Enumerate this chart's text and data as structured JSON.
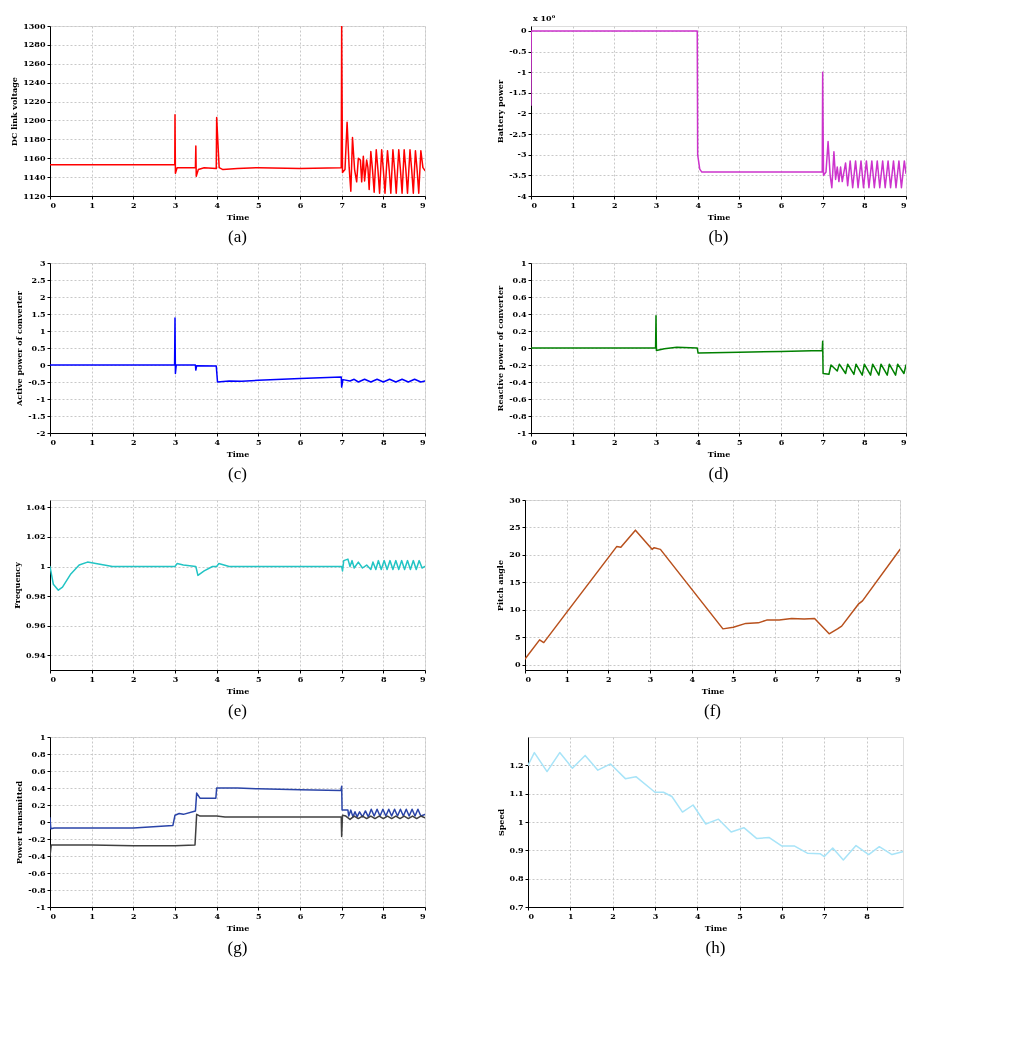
{
  "chart_data": [
    {
      "type": "line",
      "xlabel": "Time",
      "ylabel": "DC link voltage",
      "xlim": [
        0,
        9
      ],
      "xticks": [
        0,
        1,
        2,
        3,
        4,
        5,
        6,
        7,
        8,
        9
      ],
      "ylim": [
        1120,
        1300
      ],
      "yticks": [
        1120,
        1140,
        1160,
        1180,
        1200,
        1220,
        1240,
        1260,
        1280,
        1300
      ],
      "grid": true,
      "annotations": [
        "(a)"
      ],
      "series": [
        {
          "color": "#ff0000",
          "x": [
            0,
            2.995,
            3.0,
            3.01,
            3.05,
            3.49,
            3.5,
            3.51,
            3.56,
            3.7,
            3.99,
            4.0,
            4.06,
            4.15,
            4.5,
            5,
            6,
            6.99,
            7.0,
            7.02,
            7.08,
            7.13,
            7.18,
            7.22,
            7.26,
            7.31,
            7.36,
            7.4,
            7.45,
            7.48,
            7.52,
            7.55,
            7.6,
            7.63,
            7.66,
            7.7,
            7.74,
            7.78,
            7.83,
            7.87,
            7.91,
            7.96,
            8.0,
            8.04,
            8.1,
            8.14,
            8.18,
            8.23,
            8.27,
            8.31,
            8.37,
            8.41,
            8.45,
            8.5,
            8.54,
            8.58,
            8.64,
            8.68,
            8.72,
            8.77,
            8.81,
            8.85,
            8.9,
            8.95,
            9
          ],
          "values": [
            1153,
            1153,
            1206,
            1144,
            1150,
            1150,
            1173,
            1141,
            1148,
            1150,
            1149,
            1203,
            1150,
            1148,
            1149,
            1150,
            1149,
            1150,
            1300,
            1145,
            1148,
            1198,
            1150,
            1125,
            1182,
            1148,
            1135,
            1160,
            1158,
            1135,
            1162,
            1136,
            1158,
            1150,
            1127,
            1167,
            1148,
            1124,
            1169,
            1148,
            1123,
            1169,
            1148,
            1123,
            1168,
            1148,
            1123,
            1169,
            1148,
            1123,
            1169,
            1148,
            1123,
            1169,
            1148,
            1123,
            1169,
            1148,
            1123,
            1168,
            1148,
            1123,
            1168,
            1150,
            1147
          ]
        }
      ]
    },
    {
      "type": "line",
      "xlabel": "Time",
      "ylabel": "Battery power",
      "xlim": [
        0,
        9
      ],
      "xticks": [
        0,
        1,
        2,
        3,
        4,
        5,
        6,
        7,
        8,
        9
      ],
      "ylim": [
        -4,
        0.12
      ],
      "yticks": [
        -4,
        -3.5,
        -3,
        -2.5,
        -2,
        -1.5,
        -1,
        -0.5,
        0
      ],
      "grid": true,
      "annotations": [
        "x 10⁶",
        "(b)"
      ],
      "series": [
        {
          "color": "#cc33cc",
          "x": [
            0,
            0.005,
            3.99,
            4.0,
            4.05,
            4.1,
            5,
            6.99,
            7.0,
            7.02,
            7.08,
            7.13,
            7.18,
            7.22,
            7.27,
            7.31,
            7.35,
            7.39,
            7.43,
            7.47,
            7.55,
            7.6,
            7.66,
            7.72,
            7.79,
            7.85,
            7.92,
            7.98,
            8.05,
            8.11,
            8.18,
            8.24,
            8.31,
            8.37,
            8.44,
            8.5,
            8.57,
            8.63,
            8.7,
            8.76,
            8.83,
            8.89,
            8.96,
            9
          ],
          "values": [
            -1.8,
            0,
            0,
            -3.0,
            -3.35,
            -3.42,
            -3.42,
            -3.42,
            -1.0,
            -3.5,
            -3.42,
            -2.68,
            -3.5,
            -3.8,
            -2.93,
            -3.6,
            -3.3,
            -3.65,
            -3.3,
            -3.65,
            -3.2,
            -3.75,
            -3.15,
            -3.8,
            -3.15,
            -3.8,
            -3.15,
            -3.8,
            -3.15,
            -3.8,
            -3.15,
            -3.8,
            -3.15,
            -3.8,
            -3.15,
            -3.8,
            -3.15,
            -3.8,
            -3.15,
            -3.8,
            -3.15,
            -3.8,
            -3.15,
            -3.45
          ]
        }
      ]
    },
    {
      "type": "line",
      "xlabel": "Time",
      "ylabel": "Active power of converter",
      "xlim": [
        0,
        9
      ],
      "xticks": [
        0,
        1,
        2,
        3,
        4,
        5,
        6,
        7,
        8,
        9
      ],
      "ylim": [
        -2,
        3
      ],
      "yticks": [
        -2,
        -1.5,
        -1,
        -0.5,
        0,
        0.5,
        1,
        1.5,
        2,
        2.5,
        3
      ],
      "grid": true,
      "annotations": [
        "(c)"
      ],
      "series": [
        {
          "color": "#0000ff",
          "x": [
            0,
            2.99,
            3.0,
            3.01,
            3.03,
            3.49,
            3.5,
            3.52,
            3.99,
            4.02,
            4.3,
            4.6,
            5,
            6,
            6.99,
            7.0,
            7.03,
            7.2,
            7.3,
            7.4,
            7.55,
            7.7,
            7.85,
            8.0,
            8.15,
            8.3,
            8.45,
            8.6,
            8.75,
            8.9,
            9
          ],
          "values": [
            0,
            0,
            1.38,
            -0.25,
            0,
            0,
            -0.15,
            -0.02,
            -0.03,
            -0.5,
            -0.47,
            -0.48,
            -0.45,
            -0.4,
            -0.35,
            -0.65,
            -0.43,
            -0.47,
            -0.42,
            -0.5,
            -0.42,
            -0.5,
            -0.42,
            -0.5,
            -0.42,
            -0.5,
            -0.42,
            -0.5,
            -0.42,
            -0.5,
            -0.47
          ]
        }
      ]
    },
    {
      "type": "line",
      "xlabel": "Time",
      "ylabel": "Reactive power of converter",
      "xlim": [
        0,
        9
      ],
      "xticks": [
        0,
        1,
        2,
        3,
        4,
        5,
        6,
        7,
        8,
        9
      ],
      "ylim": [
        -1,
        1
      ],
      "yticks": [
        -1,
        -0.8,
        -0.6,
        -0.4,
        -0.2,
        0,
        0.2,
        0.4,
        0.6,
        0.8,
        1
      ],
      "grid": true,
      "annotations": [
        "(d)"
      ],
      "series": [
        {
          "color": "#008000",
          "x": [
            0,
            2.99,
            3.0,
            3.01,
            3.2,
            3.5,
            3.99,
            4.01,
            5,
            6,
            6.99,
            7.0,
            7.01,
            7.15,
            7.2,
            7.35,
            7.4,
            7.55,
            7.6,
            7.75,
            7.8,
            7.95,
            8.0,
            8.15,
            8.2,
            8.35,
            8.4,
            8.55,
            8.6,
            8.75,
            8.8,
            8.95,
            9
          ],
          "values": [
            0,
            0,
            0.38,
            -0.03,
            -0.01,
            0.01,
            0,
            -0.06,
            -0.05,
            -0.04,
            -0.03,
            0.08,
            -0.3,
            -0.31,
            -0.2,
            -0.27,
            -0.19,
            -0.3,
            -0.19,
            -0.31,
            -0.19,
            -0.32,
            -0.19,
            -0.32,
            -0.19,
            -0.32,
            -0.19,
            -0.32,
            -0.19,
            -0.32,
            -0.19,
            -0.3,
            -0.2
          ]
        }
      ]
    },
    {
      "type": "line",
      "xlabel": "Time",
      "ylabel": "Frequency",
      "xlim": [
        0,
        9
      ],
      "xticks": [
        0,
        1,
        2,
        3,
        4,
        5,
        6,
        7,
        8,
        9
      ],
      "ylim": [
        0.93,
        1.045
      ],
      "yticks": [
        0.94,
        0.96,
        0.98,
        1,
        1.02,
        1.04
      ],
      "grid": true,
      "annotations": [
        "(e)"
      ],
      "series": [
        {
          "color": "#22c4c4",
          "x": [
            0,
            0.08,
            0.2,
            0.3,
            0.5,
            0.7,
            0.9,
            1.1,
            1.5,
            3.0,
            3.05,
            3.2,
            3.5,
            3.55,
            3.7,
            3.9,
            4.0,
            4.05,
            4.3,
            7.0,
            7.02,
            7.05,
            7.15,
            7.2,
            7.25,
            7.3,
            7.4,
            7.5,
            7.6,
            7.7,
            7.75,
            7.82,
            7.88,
            7.95,
            8.02,
            8.09,
            8.16,
            8.23,
            8.3,
            8.37,
            8.44,
            8.51,
            8.58,
            8.65,
            8.72,
            8.79,
            8.86,
            8.93,
            9
          ],
          "values": [
            1.0,
            0.988,
            0.984,
            0.986,
            0.995,
            1.001,
            1.003,
            1.002,
            1.0,
            1.0,
            1.002,
            1.001,
            1.0,
            0.994,
            0.997,
            1.0,
            1.0,
            1.002,
            1.0,
            1.0,
            0.997,
            1.004,
            1.005,
            1.0,
            1.004,
            0.999,
            1.003,
            0.999,
            1.001,
            0.998,
            1.003,
            0.998,
            1.004,
            0.998,
            1.004,
            0.998,
            1.004,
            0.998,
            1.004,
            0.998,
            1.004,
            0.998,
            1.004,
            0.998,
            1.004,
            0.998,
            1.004,
            0.999,
            1.0
          ]
        }
      ]
    },
    {
      "type": "line",
      "xlabel": "Time",
      "ylabel": "Pitch angle",
      "xlim": [
        0,
        9
      ],
      "xticks": [
        0,
        1,
        2,
        3,
        4,
        5,
        6,
        7,
        8,
        9
      ],
      "ylim": [
        -1,
        30
      ],
      "yticks": [
        0,
        5,
        10,
        15,
        20,
        25,
        30
      ],
      "grid": true,
      "annotations": [
        "(f)"
      ],
      "series": [
        {
          "color": "#b8501c",
          "x": [
            0,
            0.35,
            0.45,
            1,
            2.2,
            2.3,
            2.65,
            3.05,
            3.1,
            3.25,
            4.75,
            5,
            5.3,
            5.6,
            5.8,
            6.1,
            6.4,
            6.7,
            6.95,
            7.3,
            7.5,
            7.6,
            8,
            8.1,
            9
          ],
          "values": [
            1,
            4.5,
            4,
            9.5,
            21.5,
            21.4,
            24.5,
            21,
            21.3,
            21,
            6.5,
            6.8,
            7.5,
            7.6,
            8.1,
            8.1,
            8.4,
            8.3,
            8.4,
            5.6,
            6.5,
            7,
            11,
            11.6,
            21
          ]
        }
      ]
    },
    {
      "type": "line",
      "xlabel": "Time",
      "ylabel": "Power transmitted",
      "xlim": [
        0,
        9
      ],
      "xticks": [
        0,
        1,
        2,
        3,
        4,
        5,
        6,
        7,
        8,
        9
      ],
      "ylim": [
        -1,
        1
      ],
      "yticks": [
        -1,
        -0.8,
        -0.6,
        -0.4,
        -0.2,
        0,
        0.2,
        0.4,
        0.6,
        0.8,
        1
      ],
      "grid": true,
      "annotations": [
        "(g)"
      ],
      "series": [
        {
          "color": "#2a44a8",
          "x": [
            0,
            0.02,
            0.1,
            1,
            2,
            2.95,
            3.0,
            3.1,
            3.2,
            3.49,
            3.52,
            3.6,
            3.98,
            4.0,
            4.5,
            5,
            6,
            6.98,
            7.0,
            7.01,
            7.15,
            7.17,
            7.22,
            7.27,
            7.32,
            7.37,
            7.43,
            7.5,
            7.57,
            7.64,
            7.71,
            7.78,
            7.85,
            7.92,
            7.99,
            8.06,
            8.13,
            8.2,
            8.27,
            8.34,
            8.41,
            8.48,
            8.55,
            8.62,
            8.69,
            8.76,
            8.83,
            8.9,
            9
          ],
          "values": [
            0.05,
            -0.08,
            -0.07,
            -0.07,
            -0.07,
            -0.04,
            0.08,
            0.1,
            0.09,
            0.13,
            0.34,
            0.28,
            0.28,
            0.4,
            0.4,
            0.39,
            0.38,
            0.37,
            0.42,
            0.14,
            0.14,
            0.07,
            0.14,
            0.06,
            0.12,
            0.06,
            0.12,
            0.06,
            0.13,
            0.06,
            0.15,
            0.07,
            0.15,
            0.07,
            0.15,
            0.07,
            0.15,
            0.07,
            0.15,
            0.07,
            0.15,
            0.07,
            0.15,
            0.07,
            0.15,
            0.07,
            0.15,
            0.07,
            0.09
          ]
        },
        {
          "color": "#404040",
          "x": [
            0,
            0.03,
            1,
            2,
            3,
            3.48,
            3.52,
            3.6,
            4,
            4.2,
            6.99,
            7.0,
            7.02,
            7.1,
            7.2,
            7.3,
            7.4,
            7.5,
            7.6,
            7.7,
            7.8,
            7.9,
            8.0,
            8.1,
            8.2,
            8.3,
            8.4,
            8.5,
            8.6,
            8.7,
            8.8,
            8.9,
            9
          ],
          "values": [
            -0.4,
            -0.27,
            -0.27,
            -0.28,
            -0.28,
            -0.27,
            0.09,
            0.07,
            0.07,
            0.06,
            0.06,
            -0.17,
            0.08,
            0.07,
            0.03,
            0.07,
            0.04,
            0.07,
            0.04,
            0.07,
            0.04,
            0.07,
            0.04,
            0.07,
            0.04,
            0.07,
            0.04,
            0.07,
            0.04,
            0.07,
            0.04,
            0.07,
            0.05
          ]
        }
      ]
    },
    {
      "type": "line",
      "xlabel": "Time",
      "ylabel": "Speed",
      "xlim": [
        0,
        8.86
      ],
      "xticks": [
        0,
        1,
        2,
        3,
        4,
        5,
        6,
        7,
        8
      ],
      "ylim": [
        0.7,
        1.3
      ],
      "yticks": [
        0.7,
        0.8,
        0.9,
        1,
        1.1,
        1.2
      ],
      "grid": true,
      "annotations": [
        "(h)"
      ],
      "series": [
        {
          "color": "#a8e4f8",
          "x": [
            0,
            0.15,
            0.45,
            0.75,
            1.05,
            1.35,
            1.65,
            1.95,
            2.3,
            2.55,
            3.0,
            3.2,
            3.4,
            3.65,
            3.9,
            4.2,
            4.5,
            4.8,
            5.1,
            5.4,
            5.7,
            6.0,
            6.3,
            6.6,
            6.9,
            7.0,
            7.2,
            7.45,
            7.75,
            8.05,
            8.3,
            8.6,
            8.85
          ],
          "values": [
            1.2,
            1.245,
            1.178,
            1.245,
            1.19,
            1.235,
            1.183,
            1.205,
            1.153,
            1.16,
            1.105,
            1.105,
            1.09,
            1.035,
            1.06,
            0.993,
            1.01,
            0.965,
            0.98,
            0.942,
            0.945,
            0.915,
            0.915,
            0.89,
            0.888,
            0.878,
            0.908,
            0.866,
            0.917,
            0.885,
            0.913,
            0.885,
            0.895
          ]
        }
      ]
    }
  ]
}
